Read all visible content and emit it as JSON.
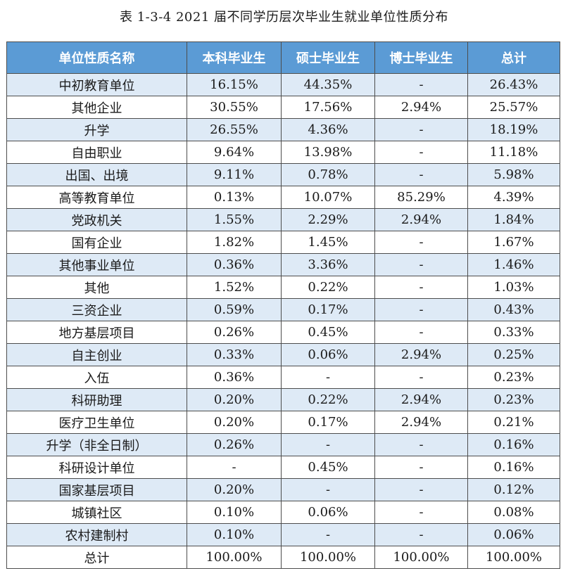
{
  "caption": "表 1-3-4 2021 届不同学历层次毕业生就业单位性质分布",
  "headers": [
    "单位性质名称",
    "本科毕业生",
    "硕士毕业生",
    "博士毕业生",
    "总计"
  ],
  "rows": [
    [
      "中初教育单位",
      "16.15%",
      "44.35%",
      "-",
      "26.43%"
    ],
    [
      "其他企业",
      "30.55%",
      "17.56%",
      "2.94%",
      "25.57%"
    ],
    [
      "升学",
      "26.55%",
      "4.36%",
      "-",
      "18.19%"
    ],
    [
      "自由职业",
      "9.64%",
      "13.98%",
      "-",
      "11.18%"
    ],
    [
      "出国、出境",
      "9.11%",
      "0.78%",
      "-",
      "5.98%"
    ],
    [
      "高等教育单位",
      "0.13%",
      "10.07%",
      "85.29%",
      "4.39%"
    ],
    [
      "党政机关",
      "1.55%",
      "2.29%",
      "2.94%",
      "1.84%"
    ],
    [
      "国有企业",
      "1.82%",
      "1.45%",
      "-",
      "1.67%"
    ],
    [
      "其他事业单位",
      "0.36%",
      "3.36%",
      "-",
      "1.46%"
    ],
    [
      "其他",
      "1.52%",
      "0.22%",
      "-",
      "1.03%"
    ],
    [
      "三资企业",
      "0.59%",
      "0.17%",
      "-",
      "0.43%"
    ],
    [
      "地方基层项目",
      "0.26%",
      "0.45%",
      "-",
      "0.33%"
    ],
    [
      "自主创业",
      "0.33%",
      "0.06%",
      "2.94%",
      "0.25%"
    ],
    [
      "入伍",
      "0.36%",
      "-",
      "-",
      "0.23%"
    ],
    [
      "科研助理",
      "0.20%",
      "0.22%",
      "2.94%",
      "0.23%"
    ],
    [
      "医疗卫生单位",
      "0.20%",
      "0.17%",
      "2.94%",
      "0.21%"
    ],
    [
      "升学（非全日制）",
      "0.26%",
      "-",
      "-",
      "0.16%"
    ],
    [
      "科研设计单位",
      "-",
      "0.45%",
      "-",
      "0.16%"
    ],
    [
      "国家基层项目",
      "0.20%",
      "-",
      "-",
      "0.12%"
    ],
    [
      "城镇社区",
      "0.10%",
      "0.06%",
      "-",
      "0.08%"
    ],
    [
      "农村建制村",
      "0.10%",
      "-",
      "-",
      "0.06%"
    ]
  ],
  "total": [
    "总计",
    "100.00%",
    "100.00%",
    "100.00%",
    "100.00%"
  ],
  "colors": {
    "header_bg": "#5b9bd5",
    "header_text": "#ffffff",
    "band_bg": "#deeaf6",
    "border": "#4d4d4d"
  }
}
